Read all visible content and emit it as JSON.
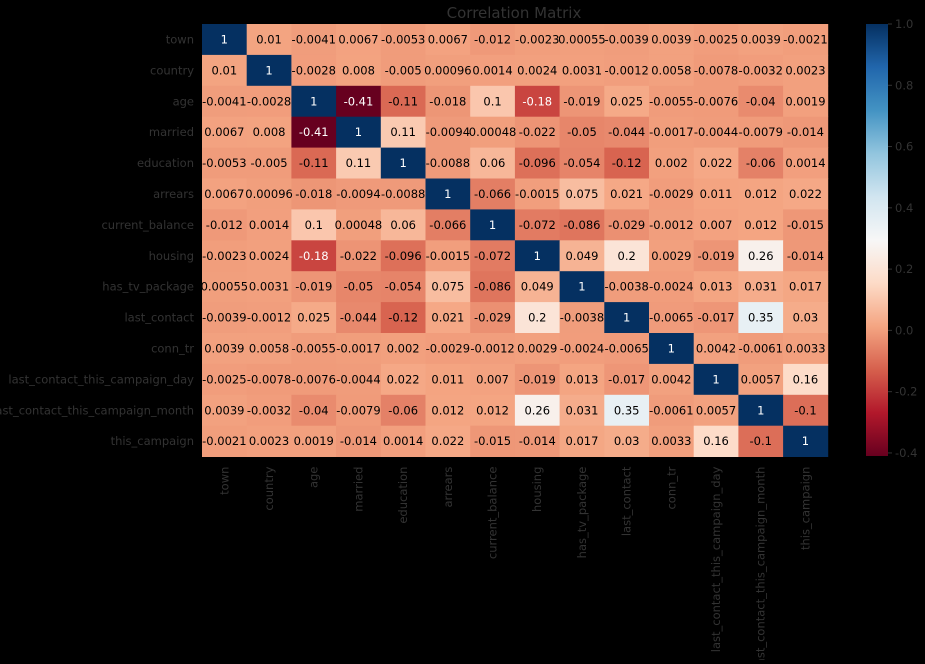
{
  "chart_data": {
    "type": "heatmap",
    "title": "Correlation Matrix",
    "variables": [
      "town",
      "country",
      "age",
      "married",
      "education",
      "arrears",
      "current_balance",
      "housing",
      "has_tv_package",
      "last_contact",
      "conn_tr",
      "last_contact_this_campaign_day",
      "last_contact_this_campaign_month",
      "this_campaign"
    ],
    "values": [
      [
        1,
        0.01,
        -0.0041,
        0.0067,
        -0.0053,
        0.0067,
        -0.012,
        -0.0023,
        0.00055,
        -0.0039,
        0.0039,
        -0.0025,
        0.0039,
        -0.0021
      ],
      [
        0.01,
        1,
        -0.0028,
        0.008,
        -0.005,
        0.00096,
        0.0014,
        0.0024,
        0.0031,
        -0.0012,
        0.0058,
        -0.0078,
        -0.0032,
        0.0023
      ],
      [
        -0.0041,
        -0.0028,
        1,
        -0.41,
        -0.11,
        -0.018,
        0.1,
        -0.18,
        -0.019,
        0.025,
        -0.0055,
        -0.0076,
        -0.04,
        0.0019
      ],
      [
        0.0067,
        0.008,
        -0.41,
        1,
        0.11,
        -0.0094,
        0.00048,
        -0.022,
        -0.05,
        -0.044,
        -0.0017,
        -0.0044,
        -0.0079,
        -0.014
      ],
      [
        -0.0053,
        -0.005,
        -0.11,
        0.11,
        1,
        -0.0088,
        0.06,
        -0.096,
        -0.054,
        -0.12,
        0.002,
        0.022,
        -0.06,
        0.0014
      ],
      [
        0.0067,
        0.00096,
        -0.018,
        -0.0094,
        -0.0088,
        1,
        -0.066,
        -0.0015,
        0.075,
        0.021,
        -0.0029,
        0.011,
        0.012,
        0.022
      ],
      [
        -0.012,
        0.0014,
        0.1,
        0.00048,
        0.06,
        -0.066,
        1,
        -0.072,
        -0.086,
        -0.029,
        -0.0012,
        0.007,
        0.012,
        -0.015
      ],
      [
        -0.0023,
        0.0024,
        -0.18,
        -0.022,
        -0.096,
        -0.0015,
        -0.072,
        1,
        0.049,
        0.2,
        0.0029,
        -0.019,
        0.26,
        -0.014
      ],
      [
        0.00055,
        0.0031,
        -0.019,
        -0.05,
        -0.054,
        0.075,
        -0.086,
        0.049,
        1,
        -0.0038,
        -0.0024,
        0.013,
        0.031,
        0.017
      ],
      [
        -0.0039,
        -0.0012,
        0.025,
        -0.044,
        -0.12,
        0.021,
        -0.029,
        0.2,
        -0.0038,
        1,
        -0.0065,
        -0.017,
        0.35,
        0.03
      ],
      [
        0.0039,
        0.0058,
        -0.0055,
        -0.0017,
        0.002,
        -0.0029,
        -0.0012,
        0.0029,
        -0.0024,
        -0.0065,
        1,
        0.0042,
        -0.0061,
        0.0033
      ],
      [
        -0.0025,
        -0.0078,
        -0.0076,
        -0.0044,
        0.022,
        0.011,
        0.007,
        -0.019,
        0.013,
        -0.017,
        0.0042,
        1,
        0.0057,
        0.16
      ],
      [
        0.0039,
        -0.0032,
        -0.04,
        -0.0079,
        -0.06,
        0.012,
        0.012,
        0.26,
        0.031,
        0.35,
        -0.0061,
        0.0057,
        1,
        -0.1
      ],
      [
        -0.0021,
        0.0023,
        0.0019,
        -0.014,
        0.0014,
        0.022,
        -0.015,
        -0.014,
        0.017,
        0.03,
        0.0033,
        0.16,
        -0.1,
        1
      ]
    ],
    "colorbar": {
      "range": [
        -0.41,
        1
      ],
      "ticks": [
        "-0.4",
        "-0.2",
        "0.0",
        "0.2",
        "0.4",
        "0.6",
        "0.8",
        "1.0"
      ],
      "colormap": "RdBu",
      "colors": [
        "#67001f",
        "#b2182b",
        "#d6604d",
        "#f4a582",
        "#fddbc7",
        "#f7f7f7",
        "#d1e5f0",
        "#92c5de",
        "#4393c3",
        "#2166ac",
        "#053061"
      ]
    },
    "label_color": "#333333",
    "annotation_dark_text": "#000000",
    "annotation_light_text": "#ffffff"
  }
}
